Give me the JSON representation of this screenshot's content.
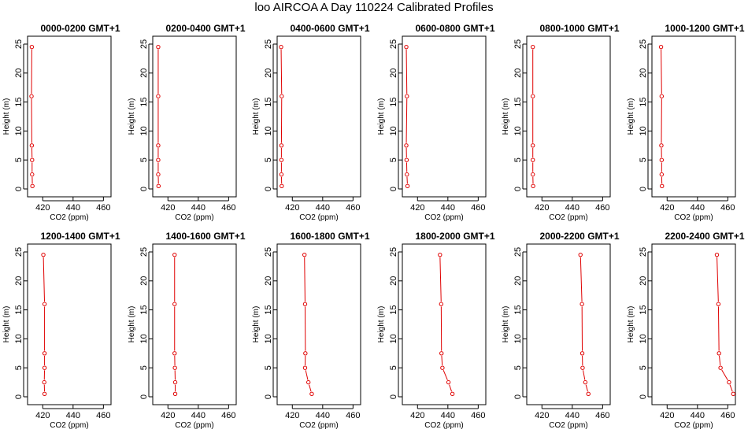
{
  "figure_title": "loo AIRCOA A  Day 110224  Calibrated Profiles",
  "colors": {
    "line": "#e00000",
    "axis": "#000000"
  },
  "chart_data": [
    {
      "type": "line",
      "title": "0000-0200 GMT+1",
      "xlabel": "CO2 (ppm)",
      "ylabel": "Height (m)",
      "xlim": [
        410,
        465
      ],
      "ylim": [
        0,
        25
      ],
      "xticks": [
        420,
        440,
        460
      ],
      "yticks": [
        0,
        5,
        10,
        15,
        20,
        25
      ],
      "series": [
        {
          "x": [
            413.2,
            413.0,
            413.0,
            412.8,
            412.6,
            412.8
          ],
          "y": [
            0.5,
            2.5,
            5,
            7.5,
            16,
            24.5
          ]
        }
      ]
    },
    {
      "type": "line",
      "title": "0200-0400 GMT+1",
      "xlabel": "CO2 (ppm)",
      "ylabel": "Height (m)",
      "xlim": [
        410,
        465
      ],
      "ylim": [
        0,
        25
      ],
      "xticks": [
        420,
        440,
        460
      ],
      "yticks": [
        0,
        5,
        10,
        15,
        20,
        25
      ],
      "series": [
        {
          "x": [
            413.8,
            413.6,
            413.6,
            413.6,
            413.6,
            413.6
          ],
          "y": [
            0.5,
            2.5,
            5,
            7.5,
            16,
            24.5
          ]
        }
      ]
    },
    {
      "type": "line",
      "title": "0400-0600 GMT+1",
      "xlabel": "CO2 (ppm)",
      "ylabel": "Height (m)",
      "xlim": [
        410,
        465
      ],
      "ylim": [
        0,
        25
      ],
      "xticks": [
        420,
        440,
        460
      ],
      "yticks": [
        0,
        5,
        10,
        15,
        20,
        25
      ],
      "series": [
        {
          "x": [
            413.0,
            412.8,
            412.8,
            412.8,
            413.0,
            412.6
          ],
          "y": [
            0.5,
            2.5,
            5,
            7.5,
            16,
            24.5
          ]
        }
      ]
    },
    {
      "type": "line",
      "title": "0600-0800 GMT+1",
      "xlabel": "CO2 (ppm)",
      "ylabel": "Height (m)",
      "xlim": [
        410,
        465
      ],
      "ylim": [
        0,
        25
      ],
      "xticks": [
        420,
        440,
        460
      ],
      "yticks": [
        0,
        5,
        10,
        15,
        20,
        25
      ],
      "series": [
        {
          "x": [
            413.4,
            413.0,
            412.8,
            412.6,
            413.0,
            412.6
          ],
          "y": [
            0.5,
            2.5,
            5,
            7.5,
            16,
            24.5
          ]
        }
      ]
    },
    {
      "type": "line",
      "title": "0800-1000 GMT+1",
      "xlabel": "CO2 (ppm)",
      "ylabel": "Height (m)",
      "xlim": [
        410,
        465
      ],
      "ylim": [
        0,
        25
      ],
      "xticks": [
        420,
        440,
        460
      ],
      "yticks": [
        0,
        5,
        10,
        15,
        20,
        25
      ],
      "series": [
        {
          "x": [
            414.2,
            414.0,
            414.0,
            414.0,
            414.0,
            414.0
          ],
          "y": [
            0.5,
            2.5,
            5,
            7.5,
            16,
            24.5
          ]
        }
      ]
    },
    {
      "type": "line",
      "title": "1000-1200 GMT+1",
      "xlabel": "CO2 (ppm)",
      "ylabel": "Height (m)",
      "xlim": [
        410,
        465
      ],
      "ylim": [
        0,
        25
      ],
      "xticks": [
        420,
        440,
        460
      ],
      "yticks": [
        0,
        5,
        10,
        15,
        20,
        25
      ],
      "series": [
        {
          "x": [
            416.6,
            416.4,
            416.4,
            416.2,
            416.4,
            416.0
          ],
          "y": [
            0.5,
            2.5,
            5,
            7.5,
            16,
            24.5
          ]
        }
      ]
    },
    {
      "type": "line",
      "title": "1200-1400 GMT+1",
      "xlabel": "CO2 (ppm)",
      "ylabel": "Height (m)",
      "xlim": [
        410,
        465
      ],
      "ylim": [
        0,
        25
      ],
      "xticks": [
        420,
        440,
        460
      ],
      "yticks": [
        0,
        5,
        10,
        15,
        20,
        25
      ],
      "series": [
        {
          "x": [
            421.2,
            421.0,
            421.2,
            421.2,
            421.2,
            420.4
          ],
          "y": [
            0.5,
            2.5,
            5,
            7.5,
            16,
            24.5
          ]
        }
      ]
    },
    {
      "type": "line",
      "title": "1400-1600 GMT+1",
      "xlabel": "CO2 (ppm)",
      "ylabel": "Height (m)",
      "xlim": [
        410,
        465
      ],
      "ylim": [
        0,
        25
      ],
      "xticks": [
        420,
        440,
        460
      ],
      "yticks": [
        0,
        5,
        10,
        15,
        20,
        25
      ],
      "series": [
        {
          "x": [
            424.8,
            424.8,
            424.6,
            424.4,
            424.4,
            424.4
          ],
          "y": [
            0.5,
            2.5,
            5,
            7.5,
            16,
            24.5
          ]
        }
      ]
    },
    {
      "type": "line",
      "title": "1600-1800 GMT+1",
      "xlabel": "CO2 (ppm)",
      "ylabel": "Height (m)",
      "xlim": [
        410,
        465
      ],
      "ylim": [
        0,
        25
      ],
      "xticks": [
        420,
        440,
        460
      ],
      "yticks": [
        0,
        5,
        10,
        15,
        20,
        25
      ],
      "series": [
        {
          "x": [
            432.8,
            430.6,
            428.4,
            428.6,
            428.4,
            428.0
          ],
          "y": [
            0.5,
            2.5,
            5,
            7.5,
            16,
            24.5
          ]
        }
      ]
    },
    {
      "type": "line",
      "title": "1800-2000 GMT+1",
      "xlabel": "CO2 (ppm)",
      "ylabel": "Height (m)",
      "xlim": [
        410,
        465
      ],
      "ylim": [
        0,
        25
      ],
      "xticks": [
        420,
        440,
        460
      ],
      "yticks": [
        0,
        5,
        10,
        15,
        20,
        25
      ],
      "series": [
        {
          "x": [
            443.0,
            440.4,
            436.4,
            435.8,
            435.6,
            434.8
          ],
          "y": [
            0.5,
            2.5,
            5,
            7.5,
            16,
            24.5
          ]
        }
      ]
    },
    {
      "type": "line",
      "title": "2000-2200 GMT+1",
      "xlabel": "CO2 (ppm)",
      "ylabel": "Height (m)",
      "xlim": [
        410,
        465
      ],
      "ylim": [
        0,
        25
      ],
      "xticks": [
        420,
        440,
        460
      ],
      "yticks": [
        0,
        5,
        10,
        15,
        20,
        25
      ],
      "series": [
        {
          "x": [
            450.6,
            448.6,
            446.8,
            446.6,
            446.4,
            445.4
          ],
          "y": [
            0.5,
            2.5,
            5,
            7.5,
            16,
            24.5
          ]
        }
      ]
    },
    {
      "type": "line",
      "title": "2200-2400 GMT+1",
      "xlabel": "CO2 (ppm)",
      "ylabel": "Height (m)",
      "xlim": [
        410,
        465
      ],
      "ylim": [
        0,
        25
      ],
      "xticks": [
        420,
        440,
        460
      ],
      "yticks": [
        0,
        5,
        10,
        15,
        20,
        25
      ],
      "series": [
        {
          "x": [
            463.6,
            460.8,
            455.2,
            454.2,
            453.8,
            452.8
          ],
          "y": [
            0.5,
            2.5,
            5,
            7.5,
            16,
            24.5
          ]
        }
      ]
    }
  ]
}
